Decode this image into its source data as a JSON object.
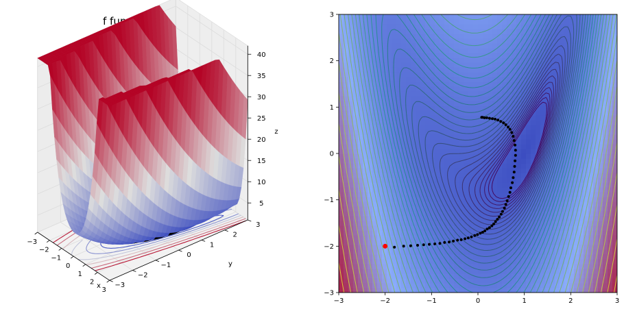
{
  "chart_data": [
    {
      "type": "surface3d",
      "title": "f function graph",
      "xlabel": "x",
      "ylabel": "y",
      "zlabel": "z",
      "xlim": [
        -3,
        3
      ],
      "ylim": [
        -3,
        3
      ],
      "zlim": [
        1,
        42
      ],
      "x_ticks": [
        "−3",
        "−2",
        "−1",
        "0",
        "1",
        "2",
        "3"
      ],
      "y_ticks": [
        "−3",
        "−2",
        "−1",
        "0",
        "1",
        "2",
        "3"
      ],
      "z_ticks": [
        "5",
        "10",
        "15",
        "20",
        "25",
        "30",
        "35",
        "40"
      ],
      "colormap": "coolwarm",
      "colors": {
        "low": "#3b4cc0",
        "mid": "#dddddd",
        "high": "#b40426"
      },
      "grid": true
    },
    {
      "type": "contour",
      "title": "",
      "xlabel": "",
      "ylabel": "",
      "xlim": [
        -3,
        3
      ],
      "ylim": [
        -3,
        3
      ],
      "x_ticks": [
        "−3",
        "−2",
        "−1",
        "0",
        "1",
        "2",
        "3"
      ],
      "y_ticks": [
        "−3",
        "−2",
        "−1",
        "0",
        "1",
        "2",
        "3"
      ],
      "colors": {
        "line_low": "#440154",
        "line_mid": "#21918c",
        "line_high": "#fde725",
        "path": "#000000",
        "start": "#ff0000"
      },
      "start_point": {
        "x": -2.0,
        "y": -2.0
      },
      "path_points": [
        [
          -1.8,
          -2.02
        ],
        [
          -1.6,
          -2.0
        ],
        [
          -1.45,
          -1.99
        ],
        [
          -1.3,
          -1.98
        ],
        [
          -1.17,
          -1.97
        ],
        [
          -1.05,
          -1.96
        ],
        [
          -0.93,
          -1.95
        ],
        [
          -0.82,
          -1.94
        ],
        [
          -0.72,
          -1.92
        ],
        [
          -0.62,
          -1.91
        ],
        [
          -0.53,
          -1.89
        ],
        [
          -0.44,
          -1.87
        ],
        [
          -0.36,
          -1.86
        ],
        [
          -0.28,
          -1.84
        ],
        [
          -0.21,
          -1.82
        ],
        [
          -0.14,
          -1.8
        ],
        [
          -0.07,
          -1.77
        ],
        [
          -0.01,
          -1.75
        ],
        [
          0.05,
          -1.72
        ],
        [
          0.1,
          -1.7
        ],
        [
          0.15,
          -1.67
        ],
        [
          0.2,
          -1.63
        ],
        [
          0.25,
          -1.6
        ],
        [
          0.3,
          -1.56
        ],
        [
          0.34,
          -1.52
        ],
        [
          0.38,
          -1.47
        ],
        [
          0.42,
          -1.42
        ],
        [
          0.46,
          -1.37
        ],
        [
          0.5,
          -1.31
        ],
        [
          0.53,
          -1.25
        ],
        [
          0.57,
          -1.18
        ],
        [
          0.6,
          -1.1
        ],
        [
          0.63,
          -1.02
        ],
        [
          0.66,
          -0.93
        ],
        [
          0.69,
          -0.84
        ],
        [
          0.71,
          -0.74
        ],
        [
          0.74,
          -0.63
        ],
        [
          0.76,
          -0.52
        ],
        [
          0.78,
          -0.4
        ],
        [
          0.79,
          -0.28
        ],
        [
          0.8,
          -0.16
        ],
        [
          0.81,
          -0.04
        ],
        [
          0.81,
          0.07
        ],
        [
          0.8,
          0.18
        ],
        [
          0.78,
          0.28
        ],
        [
          0.76,
          0.37
        ],
        [
          0.73,
          0.45
        ],
        [
          0.69,
          0.52
        ],
        [
          0.65,
          0.57
        ],
        [
          0.6,
          0.62
        ],
        [
          0.55,
          0.66
        ],
        [
          0.49,
          0.69
        ],
        [
          0.43,
          0.72
        ],
        [
          0.37,
          0.74
        ],
        [
          0.31,
          0.75
        ],
        [
          0.25,
          0.76
        ],
        [
          0.19,
          0.77
        ],
        [
          0.14,
          0.77
        ],
        [
          0.1,
          0.78
        ],
        [
          0.08,
          0.78
        ]
      ]
    }
  ]
}
